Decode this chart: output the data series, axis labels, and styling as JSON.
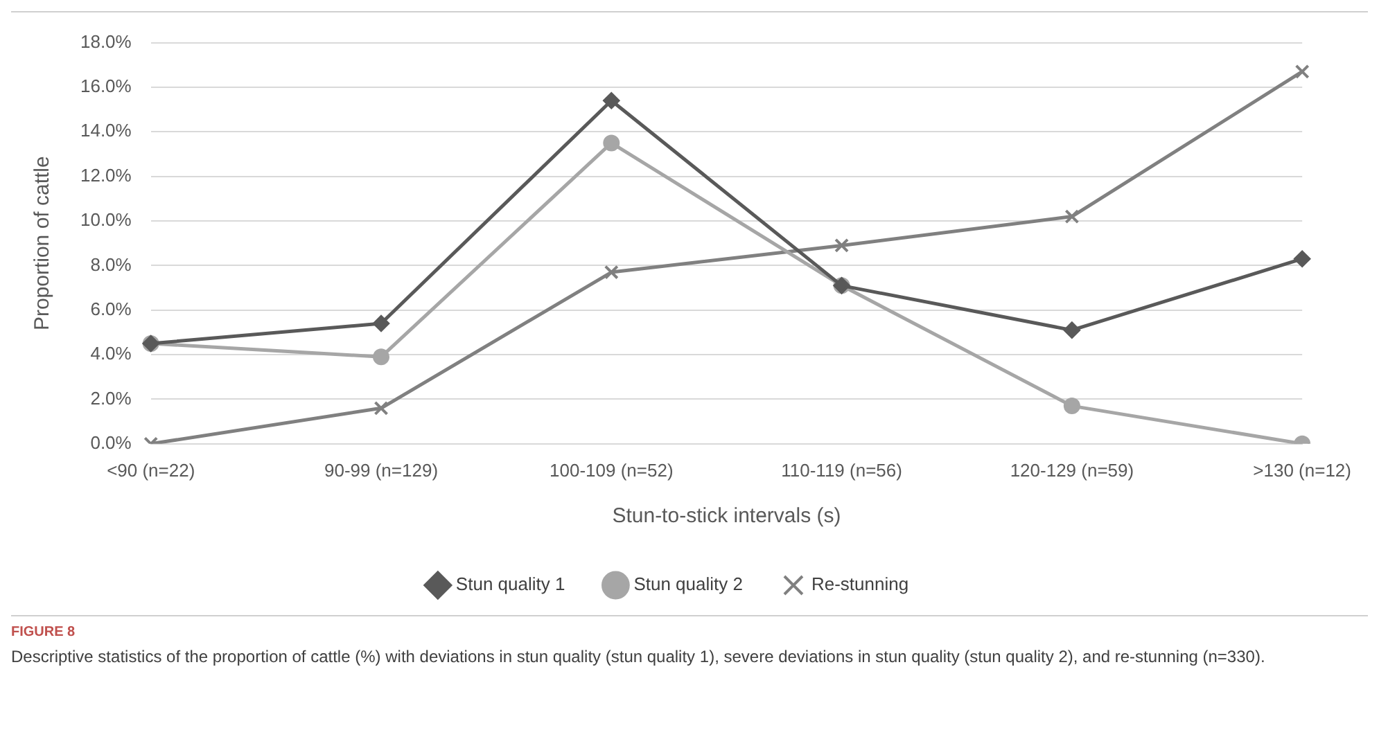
{
  "chart_data": {
    "type": "line",
    "xlabel": "Stun-to-stick intervals (s)",
    "ylabel": "Proportion of cattle",
    "categories": [
      "<90 (n=22)",
      "90-99 (n=129)",
      "100-109 (n=52)",
      "110-119 (n=56)",
      "120-129 (n=59)",
      ">130 (n=12)"
    ],
    "series": [
      {
        "name": "Stun quality 1",
        "color": "#595959",
        "marker": "diamond",
        "values": [
          4.5,
          5.4,
          15.4,
          7.1,
          5.1,
          8.3
        ]
      },
      {
        "name": "Stun quality 2",
        "color": "#a6a6a6",
        "marker": "circle",
        "values": [
          4.5,
          3.9,
          13.5,
          7.1,
          1.7,
          0
        ]
      },
      {
        "name": "Re-stunning",
        "color": "#808080",
        "marker": "cross",
        "values": [
          0,
          1.6,
          7.7,
          8.9,
          10.2,
          16.7
        ]
      }
    ],
    "ylim": [
      0,
      18
    ],
    "yticks": [
      {
        "value": 0,
        "label": "0.0%"
      },
      {
        "value": 2,
        "label": "2.0%"
      },
      {
        "value": 4,
        "label": "4.0%"
      },
      {
        "value": 6,
        "label": "6.0%"
      },
      {
        "value": 8,
        "label": "8.0%"
      },
      {
        "value": 10,
        "label": "10.0%"
      },
      {
        "value": 12,
        "label": "12.0%"
      },
      {
        "value": 14,
        "label": "14.0%"
      },
      {
        "value": 16,
        "label": "16.0%"
      },
      {
        "value": 18,
        "label": "18.0%"
      }
    ],
    "grid": "y",
    "legend": "bottom",
    "line_style": "solid",
    "annotations": [
      "FIGURE 8",
      "Descriptive statistics of the proportion of cattle (%) with deviations in stun quality (stun quality 1), severe deviations in stun quality (stun quality 2), and re-stunning (n=330)."
    ]
  }
}
